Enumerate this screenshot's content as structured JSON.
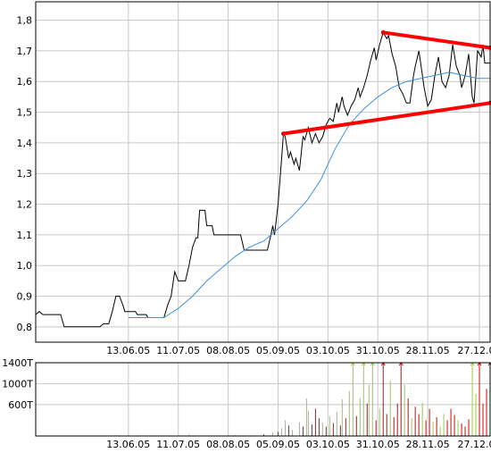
{
  "chart_data": [
    {
      "type": "line",
      "title": "",
      "xlabel": "",
      "ylabel": "",
      "ylim": [
        0.75,
        1.86
      ],
      "grid": true,
      "x_ticks": [
        {
          "label": "13.06.05",
          "d": 52
        },
        {
          "label": "11.07.05",
          "d": 80
        },
        {
          "label": "08.08.05",
          "d": 108
        },
        {
          "label": "05.09.05",
          "d": 136
        },
        {
          "label": "03.10.05",
          "d": 164
        },
        {
          "label": "31.10.05",
          "d": 192
        },
        {
          "label": "28.11.05",
          "d": 220
        },
        {
          "label": "27.12.05",
          "d": 249
        }
      ],
      "y_ticks": [
        {
          "label": "0,8",
          "v": 0.8
        },
        {
          "label": "0,9",
          "v": 0.9
        },
        {
          "label": "1,0",
          "v": 1.0
        },
        {
          "label": "1,1",
          "v": 1.1
        },
        {
          "label": "1,2",
          "v": 1.2
        },
        {
          "label": "1,3",
          "v": 1.3
        },
        {
          "label": "1,4",
          "v": 1.4
        },
        {
          "label": "1,5",
          "v": 1.5
        },
        {
          "label": "1,6",
          "v": 1.6
        },
        {
          "label": "1,7",
          "v": 1.7
        },
        {
          "label": "1,8",
          "v": 1.8
        }
      ],
      "series": [
        {
          "color": "#000000",
          "points": [
            [
              0,
              0.84
            ],
            [
              2,
              0.85
            ],
            [
              4,
              0.84
            ],
            [
              14,
              0.84
            ],
            [
              16,
              0.8
            ],
            [
              36,
              0.8
            ],
            [
              38,
              0.81
            ],
            [
              41,
              0.81
            ],
            [
              43,
              0.85
            ],
            [
              45,
              0.9
            ],
            [
              47,
              0.9
            ],
            [
              49,
              0.87
            ],
            [
              50,
              0.85
            ],
            [
              56,
              0.85
            ],
            [
              57,
              0.84
            ],
            [
              62,
              0.84
            ],
            [
              63,
              0.83
            ],
            [
              72,
              0.83
            ],
            [
              74,
              0.87
            ],
            [
              76,
              0.9
            ],
            [
              78,
              0.98
            ],
            [
              80,
              0.95
            ],
            [
              84,
              0.95
            ],
            [
              86,
              1.0
            ],
            [
              88,
              1.06
            ],
            [
              90,
              1.09
            ],
            [
              91,
              1.09
            ],
            [
              92,
              1.18
            ],
            [
              95,
              1.18
            ],
            [
              96,
              1.13
            ],
            [
              99,
              1.13
            ],
            [
              100,
              1.1
            ],
            [
              115,
              1.1
            ],
            [
              117,
              1.05
            ],
            [
              130,
              1.05
            ],
            [
              132,
              1.1
            ],
            [
              133,
              1.13
            ],
            [
              134,
              1.1
            ],
            [
              136,
              1.2
            ],
            [
              138,
              1.35
            ],
            [
              139,
              1.43
            ],
            [
              140,
              1.42
            ],
            [
              142,
              1.35
            ],
            [
              143,
              1.37
            ],
            [
              145,
              1.33
            ],
            [
              146,
              1.35
            ],
            [
              148,
              1.31
            ],
            [
              150,
              1.42
            ],
            [
              151,
              1.41
            ],
            [
              153,
              1.45
            ],
            [
              155,
              1.4
            ],
            [
              157,
              1.43
            ],
            [
              159,
              1.4
            ],
            [
              161,
              1.42
            ],
            [
              163,
              1.46
            ],
            [
              165,
              1.48
            ],
            [
              167,
              1.47
            ],
            [
              169,
              1.53
            ],
            [
              170,
              1.5
            ],
            [
              172,
              1.55
            ],
            [
              173,
              1.52
            ],
            [
              175,
              1.49
            ],
            [
              177,
              1.52
            ],
            [
              179,
              1.54
            ],
            [
              181,
              1.58
            ],
            [
              182,
              1.55
            ],
            [
              184,
              1.58
            ],
            [
              186,
              1.62
            ],
            [
              188,
              1.67
            ],
            [
              190,
              1.71
            ],
            [
              191,
              1.67
            ],
            [
              193,
              1.72
            ],
            [
              195,
              1.76
            ],
            [
              197,
              1.74
            ],
            [
              198,
              1.75
            ],
            [
              200,
              1.69
            ],
            [
              202,
              1.65
            ],
            [
              204,
              1.58
            ],
            [
              206,
              1.56
            ],
            [
              208,
              1.53
            ],
            [
              210,
              1.53
            ],
            [
              212,
              1.62
            ],
            [
              213,
              1.65
            ],
            [
              215,
              1.7
            ],
            [
              216,
              1.66
            ],
            [
              218,
              1.58
            ],
            [
              220,
              1.52
            ],
            [
              222,
              1.54
            ],
            [
              224,
              1.62
            ],
            [
              226,
              1.68
            ],
            [
              228,
              1.6
            ],
            [
              230,
              1.58
            ],
            [
              232,
              1.62
            ],
            [
              234,
              1.72
            ],
            [
              236,
              1.65
            ],
            [
              238,
              1.62
            ],
            [
              239,
              1.58
            ],
            [
              241,
              1.62
            ],
            [
              243,
              1.69
            ],
            [
              245,
              1.55
            ],
            [
              246,
              1.53
            ],
            [
              248,
              1.7
            ],
            [
              250,
              1.68
            ],
            [
              251,
              1.72
            ],
            [
              252,
              1.66
            ],
            [
              255,
              1.66
            ]
          ]
        },
        {
          "color": "#3d8fe0",
          "points": [
            [
              52,
              0.83
            ],
            [
              56,
              0.83
            ],
            [
              63,
              0.83
            ],
            [
              72,
              0.83
            ],
            [
              80,
              0.86
            ],
            [
              88,
              0.9
            ],
            [
              96,
              0.95
            ],
            [
              104,
              0.99
            ],
            [
              112,
              1.03
            ],
            [
              120,
              1.06
            ],
            [
              128,
              1.08
            ],
            [
              136,
              1.12
            ],
            [
              144,
              1.16
            ],
            [
              152,
              1.21
            ],
            [
              160,
              1.28
            ],
            [
              168,
              1.38
            ],
            [
              176,
              1.46
            ],
            [
              184,
              1.51
            ],
            [
              192,
              1.55
            ],
            [
              200,
              1.58
            ],
            [
              208,
              1.6
            ],
            [
              216,
              1.61
            ],
            [
              224,
              1.62
            ],
            [
              232,
              1.63
            ],
            [
              240,
              1.62
            ],
            [
              248,
              1.61
            ],
            [
              255,
              1.61
            ]
          ]
        },
        {
          "color": "#ff0000",
          "role": "trendline",
          "points": [
            [
              139,
              1.43
            ],
            [
              255,
              1.53
            ]
          ]
        },
        {
          "color": "#ff0000",
          "role": "trendline",
          "points": [
            [
              195,
              1.76
            ],
            [
              255,
              1.71
            ]
          ]
        }
      ]
    },
    {
      "type": "bar",
      "title": "",
      "xlabel": "",
      "ylabel": "",
      "ylim": [
        0,
        1400
      ],
      "grid": true,
      "x_ticks": [
        {
          "label": "13.06.05",
          "d": 52
        },
        {
          "label": "11.07.05",
          "d": 80
        },
        {
          "label": "08.08.05",
          "d": 108
        },
        {
          "label": "05.09.05",
          "d": 136
        },
        {
          "label": "03.10.05",
          "d": 164
        },
        {
          "label": "31.10.05",
          "d": 192
        },
        {
          "label": "28.11.05",
          "d": 220
        },
        {
          "label": "27.12.05",
          "d": 249
        }
      ],
      "y_ticks": [
        {
          "label": "600T",
          "v": 600
        },
        {
          "label": "1000T",
          "v": 1000
        },
        {
          "label": "1400T",
          "v": 1400
        }
      ],
      "bars": [
        {
          "d": 45,
          "v": 20,
          "c": "#9acd32"
        },
        {
          "d": 60,
          "v": 15,
          "c": "#9acd32"
        },
        {
          "d": 86,
          "v": 25,
          "c": "#9acd32"
        },
        {
          "d": 112,
          "v": 20,
          "c": "#9acd32"
        },
        {
          "d": 128,
          "v": 30,
          "c": "#dd0000"
        },
        {
          "d": 133,
          "v": 60,
          "c": "#9acd32"
        },
        {
          "d": 136,
          "v": 80,
          "c": "#dd0000"
        },
        {
          "d": 138,
          "v": 150,
          "c": "#9acd32"
        },
        {
          "d": 140,
          "v": 300,
          "c": "#9acd32"
        },
        {
          "d": 142,
          "v": 200,
          "c": "#dd0000"
        },
        {
          "d": 144,
          "v": 120,
          "c": "#9acd32"
        },
        {
          "d": 148,
          "v": 260,
          "c": "#9acd32"
        },
        {
          "d": 150,
          "v": 180,
          "c": "#dd0000"
        },
        {
          "d": 152,
          "v": 720,
          "c": "#9acd32"
        },
        {
          "d": 153,
          "v": 480,
          "c": "#9acd32"
        },
        {
          "d": 155,
          "v": 220,
          "c": "#dd0000"
        },
        {
          "d": 157,
          "v": 520,
          "c": "#dd0000"
        },
        {
          "d": 159,
          "v": 340,
          "c": "#dd0000"
        },
        {
          "d": 161,
          "v": 260,
          "c": "#9acd32"
        },
        {
          "d": 163,
          "v": 180,
          "c": "#dd0000"
        },
        {
          "d": 165,
          "v": 380,
          "c": "#9acd32"
        },
        {
          "d": 167,
          "v": 250,
          "c": "#dd0000"
        },
        {
          "d": 169,
          "v": 460,
          "c": "#9acd32"
        },
        {
          "d": 171,
          "v": 200,
          "c": "#dd0000"
        },
        {
          "d": 172,
          "v": 700,
          "c": "#9acd32"
        },
        {
          "d": 174,
          "v": 340,
          "c": "#dd0000"
        },
        {
          "d": 176,
          "v": 860,
          "c": "#9acd32"
        },
        {
          "d": 178,
          "v": 1400,
          "c": "#9acd32"
        },
        {
          "d": 180,
          "v": 380,
          "c": "#dd0000"
        },
        {
          "d": 182,
          "v": 720,
          "c": "#9acd32"
        },
        {
          "d": 184,
          "v": 1400,
          "c": "#9acd32"
        },
        {
          "d": 186,
          "v": 620,
          "c": "#dd0000"
        },
        {
          "d": 187,
          "v": 980,
          "c": "#9acd32"
        },
        {
          "d": 189,
          "v": 1400,
          "c": "#9acd32"
        },
        {
          "d": 191,
          "v": 300,
          "c": "#dd0000"
        },
        {
          "d": 193,
          "v": 520,
          "c": "#9acd32"
        },
        {
          "d": 195,
          "v": 1400,
          "c": "#dd0000"
        },
        {
          "d": 197,
          "v": 420,
          "c": "#dd0000"
        },
        {
          "d": 199,
          "v": 1050,
          "c": "#9acd32"
        },
        {
          "d": 201,
          "v": 360,
          "c": "#dd0000"
        },
        {
          "d": 203,
          "v": 620,
          "c": "#dd0000"
        },
        {
          "d": 205,
          "v": 1400,
          "c": "#dd0000"
        },
        {
          "d": 207,
          "v": 980,
          "c": "#9acd32"
        },
        {
          "d": 209,
          "v": 720,
          "c": "#dd0000"
        },
        {
          "d": 211,
          "v": 340,
          "c": "#9acd32"
        },
        {
          "d": 213,
          "v": 560,
          "c": "#dd0000"
        },
        {
          "d": 215,
          "v": 420,
          "c": "#dd0000"
        },
        {
          "d": 217,
          "v": 640,
          "c": "#9acd32"
        },
        {
          "d": 219,
          "v": 300,
          "c": "#dd0000"
        },
        {
          "d": 221,
          "v": 520,
          "c": "#dd0000"
        },
        {
          "d": 223,
          "v": 280,
          "c": "#9acd32"
        },
        {
          "d": 225,
          "v": 360,
          "c": "#dd0000"
        },
        {
          "d": 227,
          "v": 180,
          "c": "#9acd32"
        },
        {
          "d": 229,
          "v": 420,
          "c": "#9acd32"
        },
        {
          "d": 231,
          "v": 300,
          "c": "#dd0000"
        },
        {
          "d": 233,
          "v": 520,
          "c": "#dd0000"
        },
        {
          "d": 235,
          "v": 400,
          "c": "#dd0000"
        },
        {
          "d": 237,
          "v": 300,
          "c": "#9acd32"
        },
        {
          "d": 239,
          "v": 240,
          "c": "#dd0000"
        },
        {
          "d": 241,
          "v": 180,
          "c": "#dd0000"
        },
        {
          "d": 243,
          "v": 320,
          "c": "#dd0000"
        },
        {
          "d": 245,
          "v": 1400,
          "c": "#9acd32"
        },
        {
          "d": 247,
          "v": 800,
          "c": "#9acd32"
        },
        {
          "d": 249,
          "v": 1400,
          "c": "#dd0000"
        },
        {
          "d": 251,
          "v": 620,
          "c": "#dd0000"
        },
        {
          "d": 253,
          "v": 900,
          "c": "#dd0000"
        },
        {
          "d": 255,
          "v": 1400,
          "c": "#dd0000"
        }
      ]
    }
  ]
}
